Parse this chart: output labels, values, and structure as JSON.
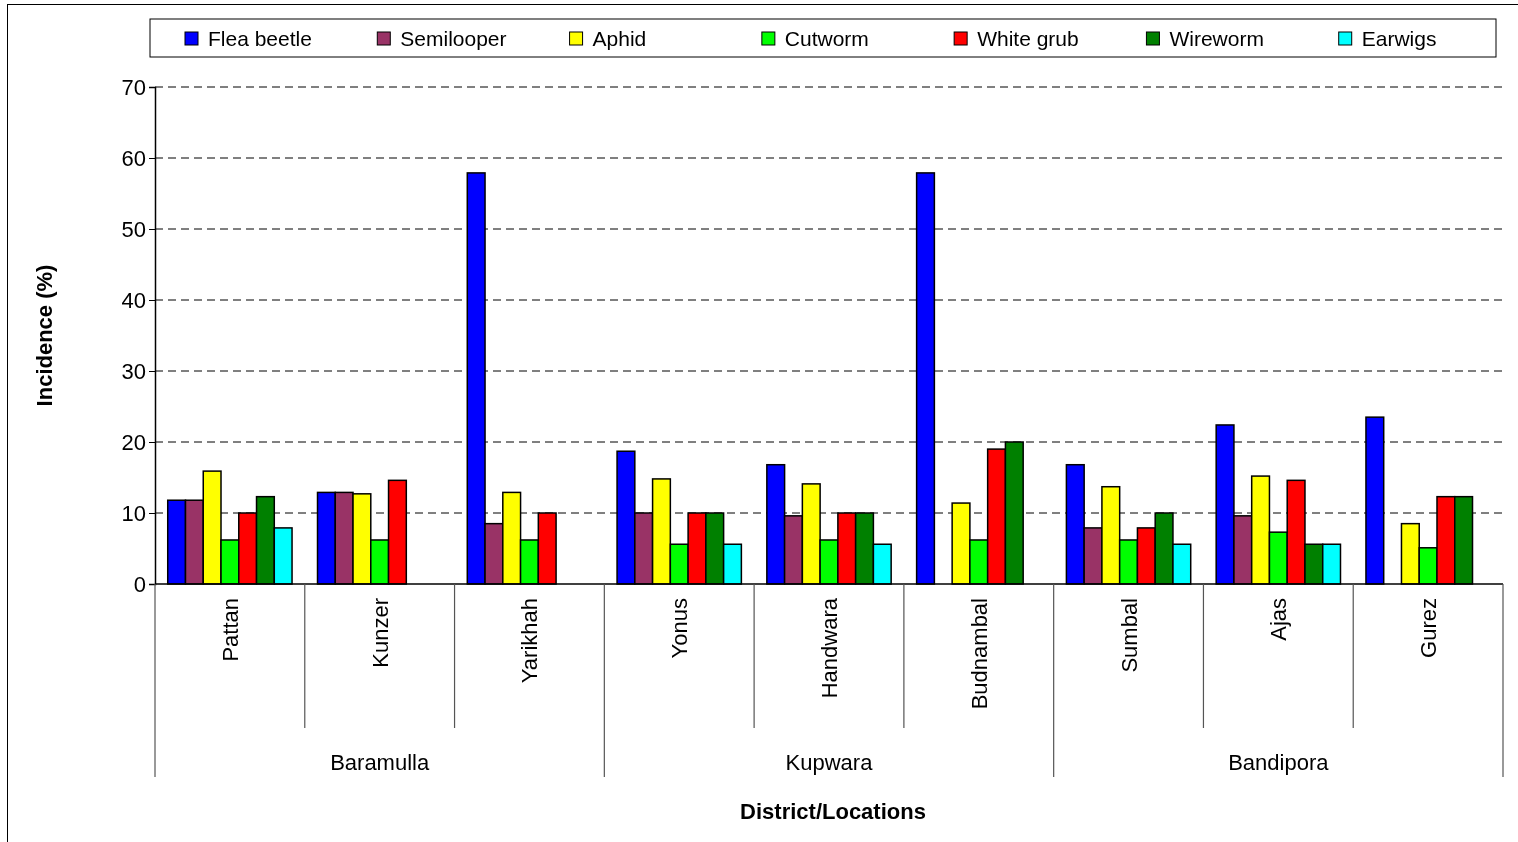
{
  "chart_data": {
    "type": "bar",
    "xlabel": "District/Locations",
    "ylabel": "Incidence (%)",
    "categories": [
      "Pattan",
      "Kunzer",
      "Yarikhah",
      "Yonus",
      "Handwara",
      "Budnambal",
      "Sumbal",
      "Ajas",
      "Gurez"
    ],
    "series": [
      {
        "name": "Flea beetle",
        "color": "#0000ff",
        "values": [
          11.8,
          12.9,
          57.9,
          18.7,
          16.8,
          57.9,
          16.8,
          22.4,
          23.5
        ]
      },
      {
        "name": "Semilooper",
        "color": "#993366",
        "values": [
          11.8,
          12.9,
          8.5,
          10,
          9.6,
          null,
          7.9,
          9.6,
          null
        ]
      },
      {
        "name": "Aphid",
        "color": "#ffff00",
        "values": [
          15.9,
          12.7,
          12.9,
          14.8,
          14.1,
          11.4,
          13.7,
          15.2,
          8.5
        ]
      },
      {
        "name": "Cutworm",
        "color": "#00ff00",
        "values": [
          6.2,
          6.2,
          6.2,
          5.6,
          6.2,
          6.2,
          6.2,
          7.3,
          5.1
        ]
      },
      {
        "name": "White grub",
        "color": "#ff0000",
        "values": [
          10,
          14.6,
          10,
          10,
          10,
          19,
          7.9,
          14.6,
          12.3
        ]
      },
      {
        "name": "Wireworm",
        "color": "#008000",
        "values": [
          12.3,
          null,
          null,
          10,
          10,
          20,
          10,
          5.6,
          12.3
        ]
      },
      {
        "name": "Earwigs",
        "color": "#00ffff",
        "values": [
          7.9,
          null,
          null,
          5.6,
          5.6,
          null,
          5.6,
          5.6,
          null
        ]
      }
    ],
    "annotations": [
      "Baramulla",
      "Kupwara",
      "Bandipora"
    ],
    "ylim": [
      0,
      70
    ],
    "yticks": [
      0,
      10,
      20,
      30,
      40,
      50,
      60,
      70
    ],
    "grid": "y",
    "legend": "top"
  }
}
